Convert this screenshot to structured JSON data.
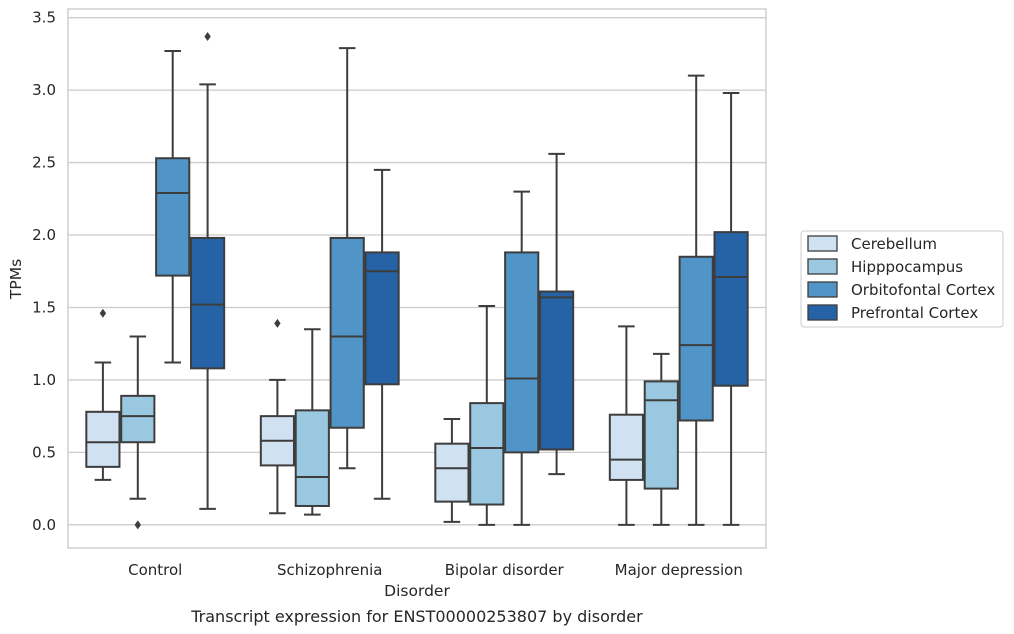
{
  "caption": "Transcript expression for ENST00000253807 by disorder",
  "chart_data": {
    "type": "boxplot",
    "xlabel": "Disorder",
    "ylabel": "TPMs",
    "ylim": [
      -0.16,
      3.56
    ],
    "yticks": [
      "0.0",
      "0.5",
      "1.0",
      "1.5",
      "2.0",
      "2.5",
      "3.0",
      "3.5"
    ],
    "grid": true,
    "legend_position": "right",
    "categories": [
      "Control",
      "Schizophrenia",
      "Bipolar disorder",
      "Major depression"
    ],
    "series": [
      {
        "name": "Cerebellum",
        "color": "#d0e1f2",
        "boxes": [
          {
            "whisker_low": 0.31,
            "q1": 0.4,
            "median": 0.57,
            "q3": 0.78,
            "whisker_high": 1.12,
            "outliers": [
              1.46
            ]
          },
          {
            "whisker_low": 0.08,
            "q1": 0.41,
            "median": 0.58,
            "q3": 0.75,
            "whisker_high": 1.0,
            "outliers": [
              1.39
            ]
          },
          {
            "whisker_low": 0.02,
            "q1": 0.16,
            "median": 0.39,
            "q3": 0.56,
            "whisker_high": 0.73,
            "outliers": []
          },
          {
            "whisker_low": 0.0,
            "q1": 0.31,
            "median": 0.45,
            "q3": 0.76,
            "whisker_high": 1.37,
            "outliers": []
          }
        ]
      },
      {
        "name": "Hipppocampus",
        "color": "#9ac8e0",
        "boxes": [
          {
            "whisker_low": 0.18,
            "q1": 0.57,
            "median": 0.75,
            "q3": 0.89,
            "whisker_high": 1.3,
            "outliers": [
              0.0
            ]
          },
          {
            "whisker_low": 0.07,
            "q1": 0.13,
            "median": 0.33,
            "q3": 0.79,
            "whisker_high": 1.35,
            "outliers": []
          },
          {
            "whisker_low": 0.0,
            "q1": 0.14,
            "median": 0.53,
            "q3": 0.84,
            "whisker_high": 1.51,
            "outliers": []
          },
          {
            "whisker_low": 0.0,
            "q1": 0.25,
            "median": 0.86,
            "q3": 0.99,
            "whisker_high": 1.18,
            "outliers": []
          }
        ]
      },
      {
        "name": "Orbitofontal Cortex",
        "color": "#5195c8",
        "boxes": [
          {
            "whisker_low": 1.12,
            "q1": 1.72,
            "median": 2.29,
            "q3": 2.53,
            "whisker_high": 3.27,
            "outliers": []
          },
          {
            "whisker_low": 0.39,
            "q1": 0.67,
            "median": 1.3,
            "q3": 1.98,
            "whisker_high": 3.29,
            "outliers": []
          },
          {
            "whisker_low": 0.0,
            "q1": 0.5,
            "median": 1.01,
            "q3": 1.88,
            "whisker_high": 2.3,
            "outliers": []
          },
          {
            "whisker_low": 0.0,
            "q1": 0.72,
            "median": 1.24,
            "q3": 1.85,
            "whisker_high": 3.1,
            "outliers": []
          }
        ]
      },
      {
        "name": "Prefrontal Cortex",
        "color": "#2563a6",
        "boxes": [
          {
            "whisker_low": 0.11,
            "q1": 1.08,
            "median": 1.52,
            "q3": 1.98,
            "whisker_high": 3.04,
            "outliers": [
              3.37
            ]
          },
          {
            "whisker_low": 0.18,
            "q1": 0.97,
            "median": 1.75,
            "q3": 1.88,
            "whisker_high": 2.45,
            "outliers": []
          },
          {
            "whisker_low": 0.35,
            "q1": 0.52,
            "median": 1.57,
            "q3": 1.61,
            "whisker_high": 2.56,
            "outliers": []
          },
          {
            "whisker_low": 0.0,
            "q1": 0.96,
            "median": 1.71,
            "q3": 2.02,
            "whisker_high": 2.98,
            "outliers": []
          }
        ]
      }
    ]
  }
}
